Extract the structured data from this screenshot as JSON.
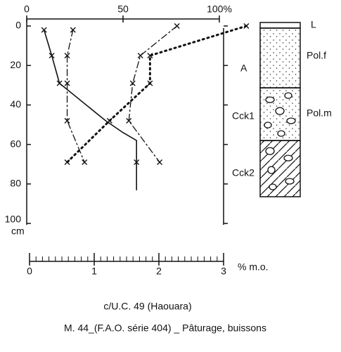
{
  "chart_data": {
    "type": "line",
    "xlim": [
      0,
      100
    ],
    "xticks": [
      0,
      50,
      {
        "value": 100,
        "label": "100%"
      }
    ],
    "ylim": [
      0,
      100
    ],
    "yticks": [
      0,
      20,
      40,
      60,
      80,
      100
    ],
    "y_label": "cm",
    "y_inverted": true,
    "x2lim": [
      0,
      3
    ],
    "x2ticks": [
      0,
      1,
      2,
      3
    ],
    "x2label": "% m.o.",
    "series": [
      {
        "color": "#111",
        "style": "dotted",
        "depths": [
          0,
          15,
          29,
          48,
          69
        ],
        "values": [
          114,
          64,
          64,
          43,
          21
        ],
        "marked": [
          true,
          true,
          true,
          true,
          true
        ]
      },
      {
        "color": "#111",
        "style": "dashdot",
        "depths": [
          2,
          15,
          29,
          48,
          69
        ],
        "values": [
          24,
          21,
          21,
          21,
          30
        ],
        "marked": [
          true,
          true,
          true,
          true,
          true
        ]
      },
      {
        "color": "#111",
        "style": "dashdot",
        "depths": [
          0,
          15,
          29,
          48,
          69
        ],
        "values": [
          78,
          59,
          55,
          53,
          69
        ],
        "marked": [
          true,
          true,
          true,
          true,
          true
        ]
      },
      {
        "color": "#111",
        "style": "solid",
        "depths": [
          2,
          15,
          29,
          48,
          54,
          58,
          69,
          83
        ],
        "values": [
          9,
          13,
          17,
          41,
          50,
          57,
          57,
          57
        ],
        "marked": [
          true,
          true,
          true,
          false,
          false,
          false,
          true,
          false
        ]
      }
    ],
    "profile": {
      "horizons": [
        "L",
        "A",
        "Cck1",
        "Cck2"
      ],
      "materials": [
        "Pol.f",
        "Pol.m"
      ]
    },
    "caption": [
      "c/U.C. 49 (Haouara)",
      "M. 44_(F.A.O. série 404) _ Pâturage, buissons"
    ]
  }
}
